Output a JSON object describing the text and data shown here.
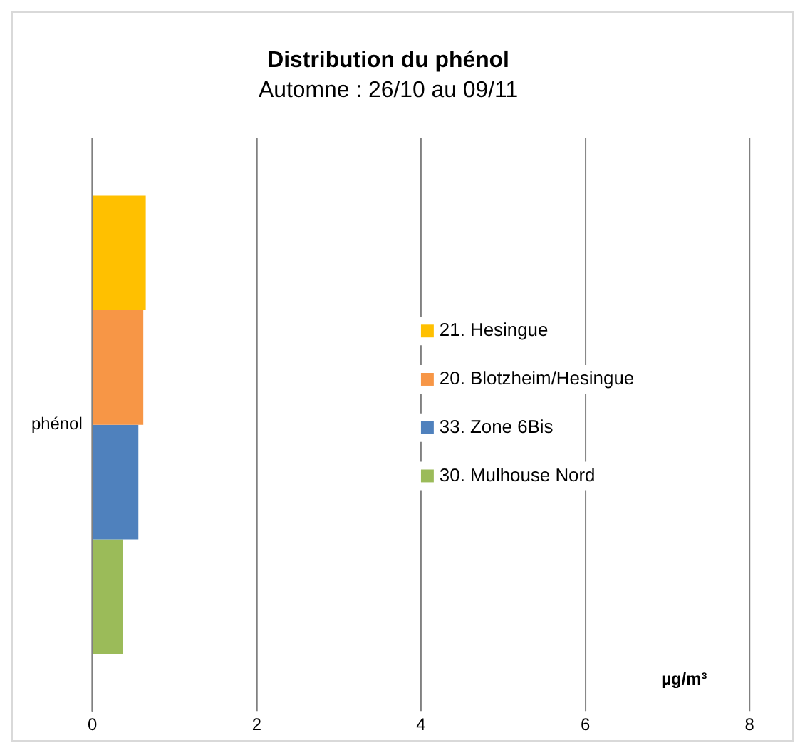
{
  "chart_data": {
    "type": "bar",
    "orientation": "horizontal",
    "title": "Distribution du phénol",
    "subtitle": "Automne : 26/10 au 09/11",
    "xlabel": "µg/m³",
    "categories": [
      "phénol"
    ],
    "series": [
      {
        "name": "21. Hesingue",
        "color": "#ffc000",
        "values": [
          0.65
        ]
      },
      {
        "name": "20. Blotzheim/Hesingue",
        "color": "#f79646",
        "values": [
          0.62
        ]
      },
      {
        "name": "33. Zone 6Bis",
        "color": "#4f81bd",
        "values": [
          0.56
        ]
      },
      {
        "name": "30. Mulhouse Nord",
        "color": "#9bbb59",
        "values": [
          0.37
        ]
      }
    ],
    "xlim": [
      0,
      8
    ],
    "xticks": [
      0,
      2,
      4,
      6,
      8
    ],
    "grid": "x",
    "legend": "right"
  }
}
